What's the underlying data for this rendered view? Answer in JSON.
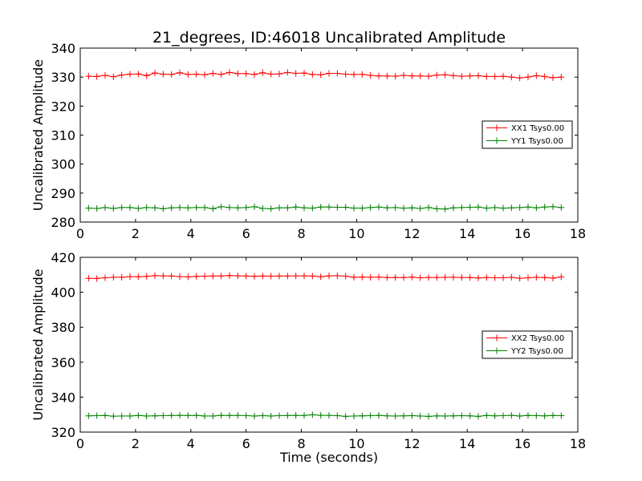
{
  "chart_data": [
    {
      "type": "line",
      "title": "21_degrees, ID:46018 Uncalibrated Amplitude",
      "xlabel": "",
      "ylabel": "Uncalibrated Amplitude",
      "xlim": [
        0,
        18
      ],
      "ylim": [
        280,
        340
      ],
      "xticks": [
        "0",
        "2",
        "4",
        "6",
        "8",
        "10",
        "12",
        "14",
        "16",
        "18"
      ],
      "yticks": [
        "280",
        "290",
        "300",
        "310",
        "320",
        "330",
        "340"
      ],
      "legend_position": "center-right",
      "x": [
        0.3,
        0.6,
        0.9,
        1.2,
        1.5,
        1.8,
        2.1,
        2.4,
        2.7,
        3.0,
        3.3,
        3.6,
        3.9,
        4.2,
        4.5,
        4.8,
        5.1,
        5.4,
        5.7,
        6.0,
        6.3,
        6.6,
        6.9,
        7.2,
        7.5,
        7.8,
        8.1,
        8.4,
        8.7,
        9.0,
        9.3,
        9.6,
        9.9,
        10.2,
        10.5,
        10.8,
        11.1,
        11.4,
        11.7,
        12.0,
        12.3,
        12.6,
        12.9,
        13.2,
        13.5,
        13.8,
        14.1,
        14.4,
        14.7,
        15.0,
        15.3,
        15.6,
        15.9,
        16.2,
        16.5,
        16.8,
        17.1,
        17.4
      ],
      "series": [
        {
          "name": "XX1 Tsys0.00",
          "color": "#ff0000",
          "values": [
            330.3,
            330.2,
            330.6,
            330.1,
            330.7,
            331.0,
            331.1,
            330.5,
            331.4,
            331.0,
            330.9,
            331.5,
            330.9,
            331.0,
            330.8,
            331.3,
            330.9,
            331.6,
            331.2,
            331.2,
            330.9,
            331.5,
            331.0,
            331.1,
            331.6,
            331.3,
            331.4,
            330.9,
            330.8,
            331.3,
            331.3,
            331.0,
            330.9,
            330.9,
            330.6,
            330.4,
            330.4,
            330.3,
            330.6,
            330.4,
            330.4,
            330.3,
            330.7,
            330.8,
            330.5,
            330.3,
            330.4,
            330.5,
            330.2,
            330.2,
            330.3,
            330.0,
            329.7,
            330.0,
            330.5,
            330.2,
            329.8,
            330.0
          ]
        },
        {
          "name": "YY1 Tsys0.00",
          "color": "#008000",
          "values": [
            284.8,
            284.7,
            285.0,
            284.7,
            285.0,
            285.0,
            284.7,
            285.0,
            284.9,
            284.6,
            284.9,
            285.0,
            284.9,
            285.0,
            285.0,
            284.6,
            285.3,
            285.0,
            284.9,
            285.0,
            285.3,
            284.7,
            284.6,
            284.9,
            284.9,
            285.2,
            284.9,
            284.8,
            285.2,
            285.2,
            285.1,
            285.1,
            284.8,
            284.8,
            285.0,
            285.2,
            284.9,
            285.0,
            284.8,
            284.9,
            284.7,
            285.0,
            284.6,
            284.5,
            284.9,
            285.0,
            285.1,
            285.2,
            284.8,
            285.0,
            284.8,
            284.9,
            285.0,
            285.2,
            284.9,
            285.2,
            285.3,
            285.0
          ]
        }
      ]
    },
    {
      "type": "line",
      "title": "",
      "xlabel": "Time (seconds)",
      "ylabel": "Uncalibrated Amplitude",
      "xlim": [
        0,
        18
      ],
      "ylim": [
        320,
        420
      ],
      "xticks": [
        "0",
        "2",
        "4",
        "6",
        "8",
        "10",
        "12",
        "14",
        "16",
        "18"
      ],
      "yticks": [
        "320",
        "340",
        "360",
        "380",
        "400",
        "420"
      ],
      "legend_position": "center-right",
      "x": [
        0.3,
        0.6,
        0.9,
        1.2,
        1.5,
        1.8,
        2.1,
        2.4,
        2.7,
        3.0,
        3.3,
        3.6,
        3.9,
        4.2,
        4.5,
        4.8,
        5.1,
        5.4,
        5.7,
        6.0,
        6.3,
        6.6,
        6.9,
        7.2,
        7.5,
        7.8,
        8.1,
        8.4,
        8.7,
        9.0,
        9.3,
        9.6,
        9.9,
        10.2,
        10.5,
        10.8,
        11.1,
        11.4,
        11.7,
        12.0,
        12.3,
        12.6,
        12.9,
        13.2,
        13.5,
        13.8,
        14.1,
        14.4,
        14.7,
        15.0,
        15.3,
        15.6,
        15.9,
        16.2,
        16.5,
        16.8,
        17.1,
        17.4
      ],
      "series": [
        {
          "name": "XX2 Tsys0.00",
          "color": "#ff0000",
          "values": [
            408.0,
            407.9,
            408.3,
            408.6,
            408.6,
            409.0,
            408.9,
            409.1,
            409.5,
            409.4,
            409.3,
            409.0,
            408.8,
            409.1,
            409.2,
            409.3,
            409.3,
            409.6,
            409.4,
            409.3,
            409.1,
            409.3,
            409.2,
            409.3,
            409.3,
            409.4,
            409.4,
            409.3,
            408.9,
            409.4,
            409.5,
            409.2,
            408.6,
            408.7,
            408.6,
            408.7,
            408.4,
            408.5,
            408.4,
            408.7,
            408.3,
            408.5,
            408.5,
            408.6,
            408.6,
            408.5,
            408.4,
            408.2,
            408.5,
            408.3,
            408.3,
            408.6,
            408.0,
            408.3,
            408.6,
            408.4,
            408.1,
            408.8
          ]
        },
        {
          "name": "YY2 Tsys0.00",
          "color": "#008000",
          "values": [
            329.3,
            329.4,
            329.5,
            329.1,
            329.2,
            329.2,
            329.5,
            329.2,
            329.3,
            329.4,
            329.5,
            329.6,
            329.5,
            329.6,
            329.2,
            329.2,
            329.6,
            329.5,
            329.6,
            329.4,
            329.2,
            329.4,
            329.2,
            329.4,
            329.5,
            329.6,
            329.5,
            329.9,
            329.6,
            329.6,
            329.4,
            329.0,
            329.2,
            329.3,
            329.4,
            329.6,
            329.3,
            329.2,
            329.3,
            329.4,
            329.2,
            329.0,
            329.3,
            329.2,
            329.3,
            329.4,
            329.3,
            329.0,
            329.5,
            329.3,
            329.4,
            329.6,
            329.2,
            329.5,
            329.4,
            329.3,
            329.5,
            329.4
          ]
        }
      ]
    }
  ]
}
